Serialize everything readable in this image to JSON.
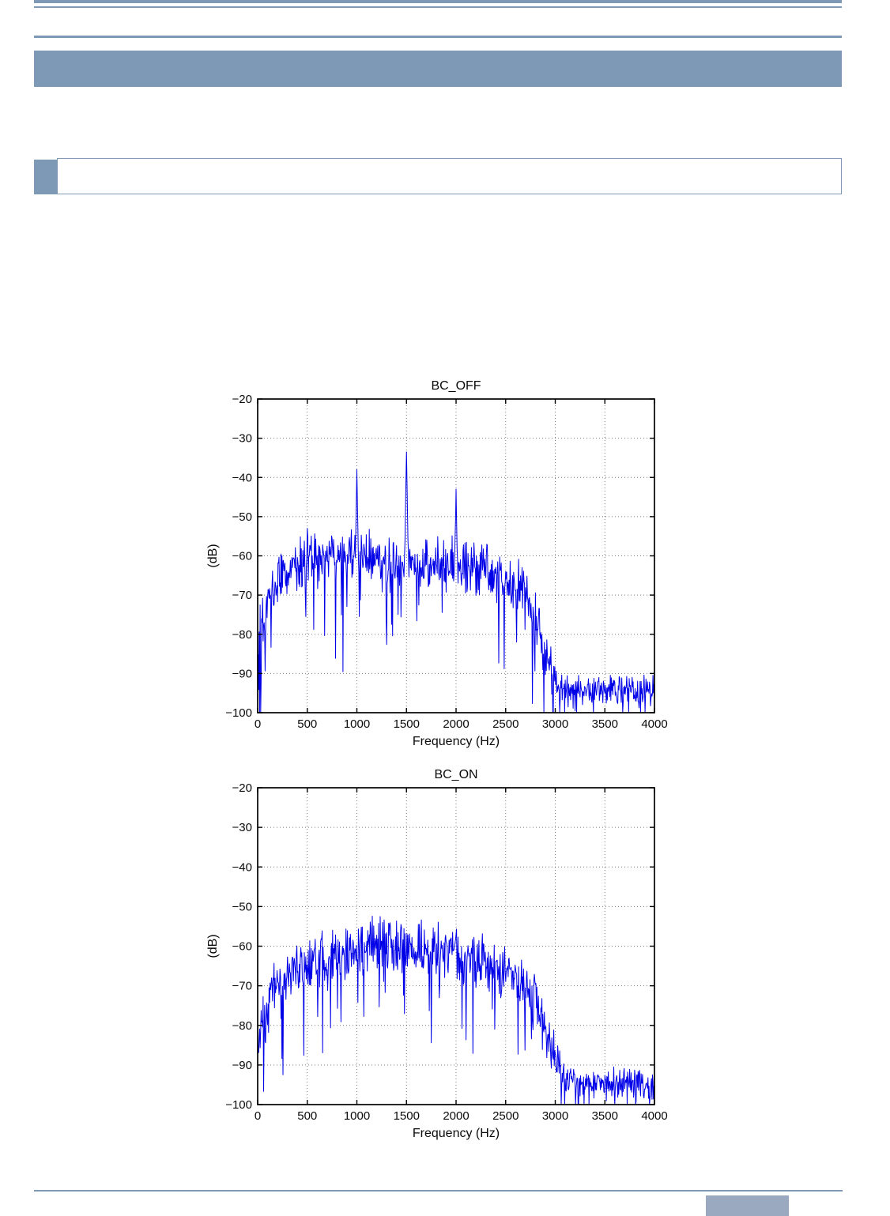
{
  "theme": {
    "accent_bar_color": "#7E99B6",
    "footer_block_color": "#9AA9C0",
    "page_background": "#FFFFFF"
  },
  "chart_data": [
    {
      "type": "line",
      "title": "BC_OFF",
      "xlabel": "Frequency (Hz)",
      "ylabel": "(dB)",
      "xlim": [
        0,
        4000
      ],
      "ylim": [
        -100,
        -20
      ],
      "xticks": [
        0,
        500,
        1000,
        1500,
        2000,
        2500,
        3000,
        3500,
        4000
      ],
      "yticks": [
        -20,
        -30,
        -40,
        -50,
        -60,
        -70,
        -80,
        -90,
        -100
      ],
      "grid": true,
      "legend": null,
      "line_color": "#0000E8",
      "n_points": 800,
      "seed": 101,
      "noise_model": "envelope entries are [freq_hz, mean_db, half_spread_db]",
      "envelope": [
        [
          0,
          -80,
          14
        ],
        [
          40,
          -76,
          11
        ],
        [
          120,
          -70,
          9
        ],
        [
          250,
          -65,
          8
        ],
        [
          400,
          -62,
          8
        ],
        [
          700,
          -61,
          8
        ],
        [
          1000,
          -59,
          8
        ],
        [
          1250,
          -62,
          8
        ],
        [
          1600,
          -62,
          8
        ],
        [
          2000,
          -62,
          8
        ],
        [
          2300,
          -64,
          8
        ],
        [
          2550,
          -66,
          8
        ],
        [
          2700,
          -71,
          9
        ],
        [
          2850,
          -80,
          9
        ],
        [
          2950,
          -89,
          7
        ],
        [
          3050,
          -94,
          6
        ],
        [
          3300,
          -95,
          5
        ],
        [
          3700,
          -94,
          5
        ],
        [
          4000,
          -95,
          5
        ]
      ],
      "dips": {
        "probability": 0.055,
        "min_db": 8,
        "extra_db": 16
      },
      "peaks_f_db": [
        [
          500,
          -53
        ],
        [
          1000,
          -38
        ],
        [
          1500,
          -33.5
        ],
        [
          2000,
          -43
        ]
      ],
      "peak_halfwidth_hz": 28
    },
    {
      "type": "line",
      "title": "BC_ON",
      "xlabel": "Frequency (Hz)",
      "ylabel": "(dB)",
      "xlim": [
        0,
        4000
      ],
      "ylim": [
        -100,
        -20
      ],
      "xticks": [
        0,
        500,
        1000,
        1500,
        2000,
        2500,
        3000,
        3500,
        4000
      ],
      "yticks": [
        -20,
        -30,
        -40,
        -50,
        -60,
        -70,
        -80,
        -90,
        -100
      ],
      "grid": true,
      "legend": null,
      "line_color": "#0000E8",
      "n_points": 800,
      "seed": 202,
      "noise_model": "envelope entries are [freq_hz, mean_db, half_spread_db]",
      "envelope": [
        [
          0,
          -88,
          13
        ],
        [
          60,
          -78,
          10
        ],
        [
          150,
          -72,
          9
        ],
        [
          300,
          -67,
          8
        ],
        [
          500,
          -65,
          8
        ],
        [
          800,
          -62,
          8
        ],
        [
          1100,
          -60,
          8
        ],
        [
          1450,
          -59,
          8.5
        ],
        [
          1800,
          -61,
          8
        ],
        [
          2100,
          -63,
          8
        ],
        [
          2400,
          -65,
          8
        ],
        [
          2650,
          -69,
          9
        ],
        [
          2800,
          -74,
          9
        ],
        [
          2950,
          -85,
          8
        ],
        [
          3100,
          -94,
          5
        ],
        [
          3400,
          -95,
          4.5
        ],
        [
          3700,
          -94,
          5
        ],
        [
          4000,
          -96,
          4
        ]
      ],
      "dips": {
        "probability": 0.05,
        "min_db": 8,
        "extra_db": 15
      },
      "peaks_f_db": [],
      "peak_halfwidth_hz": 28
    }
  ]
}
